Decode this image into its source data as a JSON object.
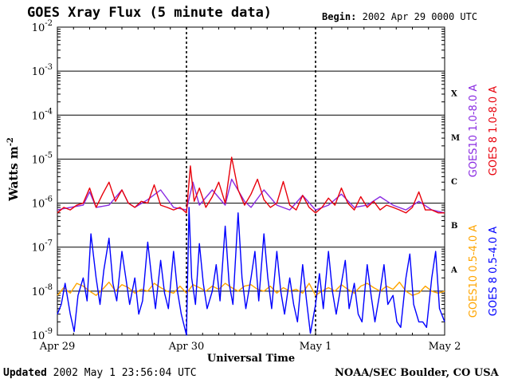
{
  "header": {
    "title": "GOES Xray Flux (5 minute data)",
    "begin_label": "Begin:",
    "begin_value": "2002 Apr 29 0000 UTC"
  },
  "footer": {
    "updated_label": "Updated",
    "updated_value": "2002 May  1 23:56:04 UTC",
    "credit": "NOAA/SEC Boulder, CO USA"
  },
  "chart_data": {
    "type": "line",
    "xlabel": "Universal Time",
    "ylabel": "Watts m",
    "ylabel_superscript": "-2",
    "y_scale": "log",
    "ylim": [
      1e-09,
      0.01
    ],
    "y_tick_exponents": [
      -2,
      -3,
      -4,
      -5,
      -6,
      -7,
      -8,
      -9
    ],
    "y_tick_base": "10",
    "xlim": [
      "2002-04-29",
      "2002-05-02"
    ],
    "x_ticks": [
      "Apr 29",
      "Apr 30",
      "May 1",
      "May 2"
    ],
    "x_tick_dates": [
      "2002-04-29",
      "2002-04-30",
      "2002-05-01",
      "2002-05-02"
    ],
    "flare_classes": [
      {
        "label": "X",
        "flux": 0.0001
      },
      {
        "label": "M",
        "flux": 1e-05
      },
      {
        "label": "C",
        "flux": 1e-06
      },
      {
        "label": "B",
        "flux": 1e-07
      },
      {
        "label": "A",
        "flux": 1e-08
      }
    ],
    "grid": true,
    "legend_placement": "right",
    "series": [
      {
        "name": "GOES10 1.0-8.0 A",
        "color": "#8a2be2",
        "x_days": [
          0,
          0.1,
          0.2,
          0.25,
          0.3,
          0.4,
          0.5,
          0.55,
          0.6,
          0.7,
          0.8,
          0.9,
          1.0,
          1.05,
          1.1,
          1.2,
          1.3,
          1.35,
          1.45,
          1.5,
          1.6,
          1.7,
          1.8,
          1.9,
          2.0,
          2.1,
          2.2,
          2.3,
          2.4,
          2.5,
          2.6,
          2.7,
          2.8,
          2.9,
          3.0
        ],
        "values": [
          7e-07,
          8e-07,
          9e-07,
          1.8e-06,
          8e-07,
          9e-07,
          2e-06,
          1e-06,
          8e-07,
          1.2e-06,
          2e-06,
          8e-07,
          7e-07,
          3e-06,
          9e-07,
          2e-06,
          9e-07,
          3.5e-06,
          1.1e-06,
          8e-07,
          2e-06,
          9e-07,
          7e-07,
          1.5e-06,
          7e-07,
          9e-07,
          1.6e-06,
          8e-07,
          9e-07,
          1.4e-06,
          9e-07,
          7e-07,
          1.1e-06,
          7e-07,
          6e-07
        ]
      },
      {
        "name": "GOES 8 1.0-8.0 A",
        "color": "#e8000b",
        "x_days": [
          0,
          0.05,
          0.1,
          0.15,
          0.2,
          0.25,
          0.3,
          0.35,
          0.4,
          0.45,
          0.5,
          0.55,
          0.6,
          0.65,
          0.7,
          0.75,
          0.8,
          0.85,
          0.9,
          0.95,
          1.0,
          1.03,
          1.06,
          1.1,
          1.15,
          1.2,
          1.25,
          1.3,
          1.35,
          1.4,
          1.45,
          1.5,
          1.55,
          1.6,
          1.65,
          1.7,
          1.75,
          1.8,
          1.85,
          1.9,
          1.95,
          2.0,
          2.05,
          2.1,
          2.15,
          2.2,
          2.25,
          2.3,
          2.35,
          2.4,
          2.45,
          2.5,
          2.55,
          2.6,
          2.65,
          2.7,
          2.75,
          2.8,
          2.85,
          2.9,
          2.95,
          3.0
        ],
        "values": [
          6e-07,
          8e-07,
          7e-07,
          9e-07,
          1e-06,
          2.2e-06,
          8e-07,
          1.6e-06,
          3e-06,
          1.1e-06,
          2e-06,
          1e-06,
          8e-07,
          1.1e-06,
          1e-06,
          2.6e-06,
          9e-07,
          8e-07,
          7e-07,
          8e-07,
          6e-07,
          7e-06,
          1.1e-06,
          2.2e-06,
          8e-07,
          1.4e-06,
          3e-06,
          1e-06,
          1.1e-05,
          2e-06,
          9e-07,
          1.6e-06,
          3.5e-06,
          1.2e-06,
          8e-07,
          1e-06,
          3.1e-06,
          9e-07,
          7e-07,
          1.5e-06,
          8e-07,
          6e-07,
          8e-07,
          1.3e-06,
          9e-07,
          2.2e-06,
          1e-06,
          7e-07,
          1.4e-06,
          8e-07,
          1.1e-06,
          7e-07,
          9e-07,
          8e-07,
          7e-07,
          6e-07,
          8e-07,
          1.8e-06,
          7e-07,
          7e-07,
          6e-07,
          6e-07
        ]
      },
      {
        "name": "GOES10 0.5-4.0 A",
        "color": "#ffa500",
        "x_days": [
          0,
          0.05,
          0.1,
          0.15,
          0.2,
          0.25,
          0.3,
          0.35,
          0.4,
          0.45,
          0.5,
          0.55,
          0.6,
          0.65,
          0.7,
          0.75,
          0.8,
          0.85,
          0.9,
          0.95,
          1.0,
          1.05,
          1.1,
          1.15,
          1.2,
          1.25,
          1.3,
          1.35,
          1.4,
          1.45,
          1.5,
          1.55,
          1.6,
          1.65,
          1.7,
          1.75,
          1.8,
          1.85,
          1.9,
          1.95,
          2.0,
          2.05,
          2.1,
          2.15,
          2.2,
          2.25,
          2.3,
          2.35,
          2.4,
          2.45,
          2.5,
          2.55,
          2.6,
          2.65,
          2.7,
          2.75,
          2.8,
          2.85,
          2.9,
          2.95,
          3.0
        ],
        "values": [
          8e-09,
          1.2e-08,
          9e-09,
          1.5e-08,
          1.3e-08,
          1e-08,
          8e-09,
          1.1e-08,
          1.6e-08,
          1e-08,
          1.4e-08,
          1.2e-08,
          9e-09,
          1.1e-08,
          1e-08,
          1.5e-08,
          1.2e-08,
          1e-08,
          9e-09,
          1.3e-08,
          9e-09,
          1.4e-08,
          1.2e-08,
          1e-08,
          1.3e-08,
          1.1e-08,
          1.5e-08,
          1.2e-08,
          1e-08,
          1.3e-08,
          1.4e-08,
          1.1e-08,
          1e-08,
          1.3e-08,
          9e-09,
          1.2e-08,
          1e-08,
          1.1e-08,
          9e-09,
          1.5e-08,
          8e-09,
          1e-08,
          1.2e-08,
          1e-08,
          1.4e-08,
          1.1e-08,
          9e-09,
          1.3e-08,
          1.5e-08,
          1.2e-08,
          1e-08,
          1.3e-08,
          1.1e-08,
          1.6e-08,
          1e-08,
          8e-09,
          9e-09,
          1.3e-08,
          1e-08,
          9e-09,
          1e-08
        ]
      },
      {
        "name": "GOES 8 0.5-4.0 A",
        "color": "#0000ff",
        "x_days": [
          0,
          0.03,
          0.06,
          0.1,
          0.13,
          0.16,
          0.2,
          0.23,
          0.26,
          0.3,
          0.33,
          0.36,
          0.4,
          0.43,
          0.46,
          0.5,
          0.53,
          0.56,
          0.6,
          0.63,
          0.66,
          0.7,
          0.73,
          0.76,
          0.8,
          0.83,
          0.86,
          0.9,
          0.93,
          0.96,
          1.0,
          1.02,
          1.04,
          1.07,
          1.1,
          1.13,
          1.16,
          1.2,
          1.23,
          1.26,
          1.3,
          1.33,
          1.36,
          1.4,
          1.43,
          1.46,
          1.5,
          1.53,
          1.56,
          1.6,
          1.63,
          1.66,
          1.7,
          1.73,
          1.76,
          1.8,
          1.83,
          1.86,
          1.9,
          1.93,
          1.96,
          2.0,
          2.03,
          2.06,
          2.1,
          2.13,
          2.16,
          2.2,
          2.23,
          2.26,
          2.3,
          2.33,
          2.36,
          2.4,
          2.43,
          2.46,
          2.5,
          2.53,
          2.56,
          2.6,
          2.63,
          2.66,
          2.7,
          2.73,
          2.76,
          2.8,
          2.83,
          2.86,
          2.9,
          2.93,
          2.96,
          3.0
        ],
        "values": [
          3e-09,
          5e-09,
          1.5e-08,
          3e-09,
          1.2e-09,
          8e-09,
          2e-08,
          6e-09,
          2e-07,
          2e-08,
          5e-09,
          3e-08,
          1.6e-07,
          1.5e-08,
          6e-09,
          8e-08,
          2e-08,
          5e-09,
          2e-08,
          3e-09,
          6e-09,
          1.3e-07,
          2e-08,
          4e-09,
          5e-08,
          9e-09,
          4e-09,
          8e-08,
          1e-08,
          3e-09,
          1e-09,
          8e-07,
          2e-08,
          5e-09,
          1.2e-07,
          1.5e-08,
          4e-09,
          1e-08,
          4e-08,
          6e-09,
          3e-07,
          1.5e-08,
          5e-09,
          6e-07,
          2e-08,
          4e-09,
          2e-08,
          8e-08,
          6e-09,
          2e-07,
          2e-08,
          4e-09,
          8e-08,
          1e-08,
          3e-09,
          2e-08,
          5e-09,
          2e-09,
          4e-08,
          6e-09,
          1.1e-09,
          5e-09,
          2.5e-08,
          4e-09,
          8e-08,
          1e-08,
          3e-09,
          1.5e-08,
          5e-08,
          4e-09,
          1.5e-08,
          3e-09,
          2e-09,
          4e-08,
          8e-09,
          2e-09,
          1e-08,
          4e-08,
          5e-09,
          8e-09,
          2e-09,
          1.5e-09,
          2e-08,
          7e-08,
          5e-09,
          2e-09,
          2e-09,
          1.5e-09,
          2e-08,
          8e-08,
          4e-09,
          2e-09
        ]
      }
    ]
  }
}
